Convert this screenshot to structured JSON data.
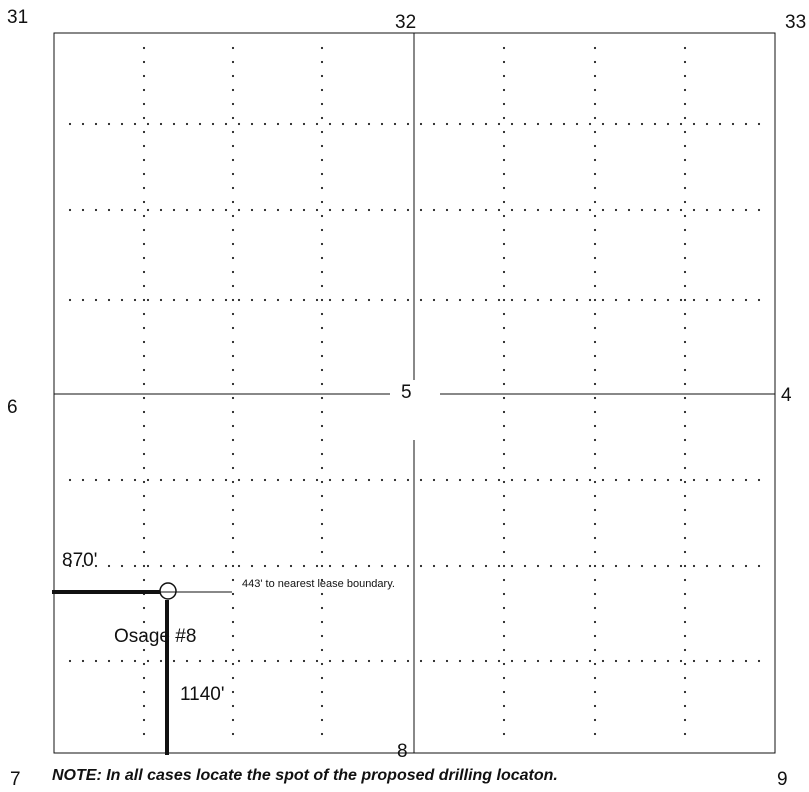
{
  "section_plat": {
    "corner_sections": {
      "top_left": "31",
      "top_center": "32",
      "top_right": "33",
      "mid_left": "6",
      "center": "5",
      "mid_right": "4",
      "bottom_left": "7",
      "bottom_center": "8",
      "bottom_right": "9"
    },
    "well": {
      "name": "Osage #8",
      "west_offset": "870'",
      "south_offset": "1140'",
      "lease_note": "443' to nearest lease boundary."
    },
    "note": "NOTE: In all cases locate the spot of the proposed drilling locaton."
  },
  "colors": {
    "line": "#111111",
    "background": "#ffffff"
  }
}
